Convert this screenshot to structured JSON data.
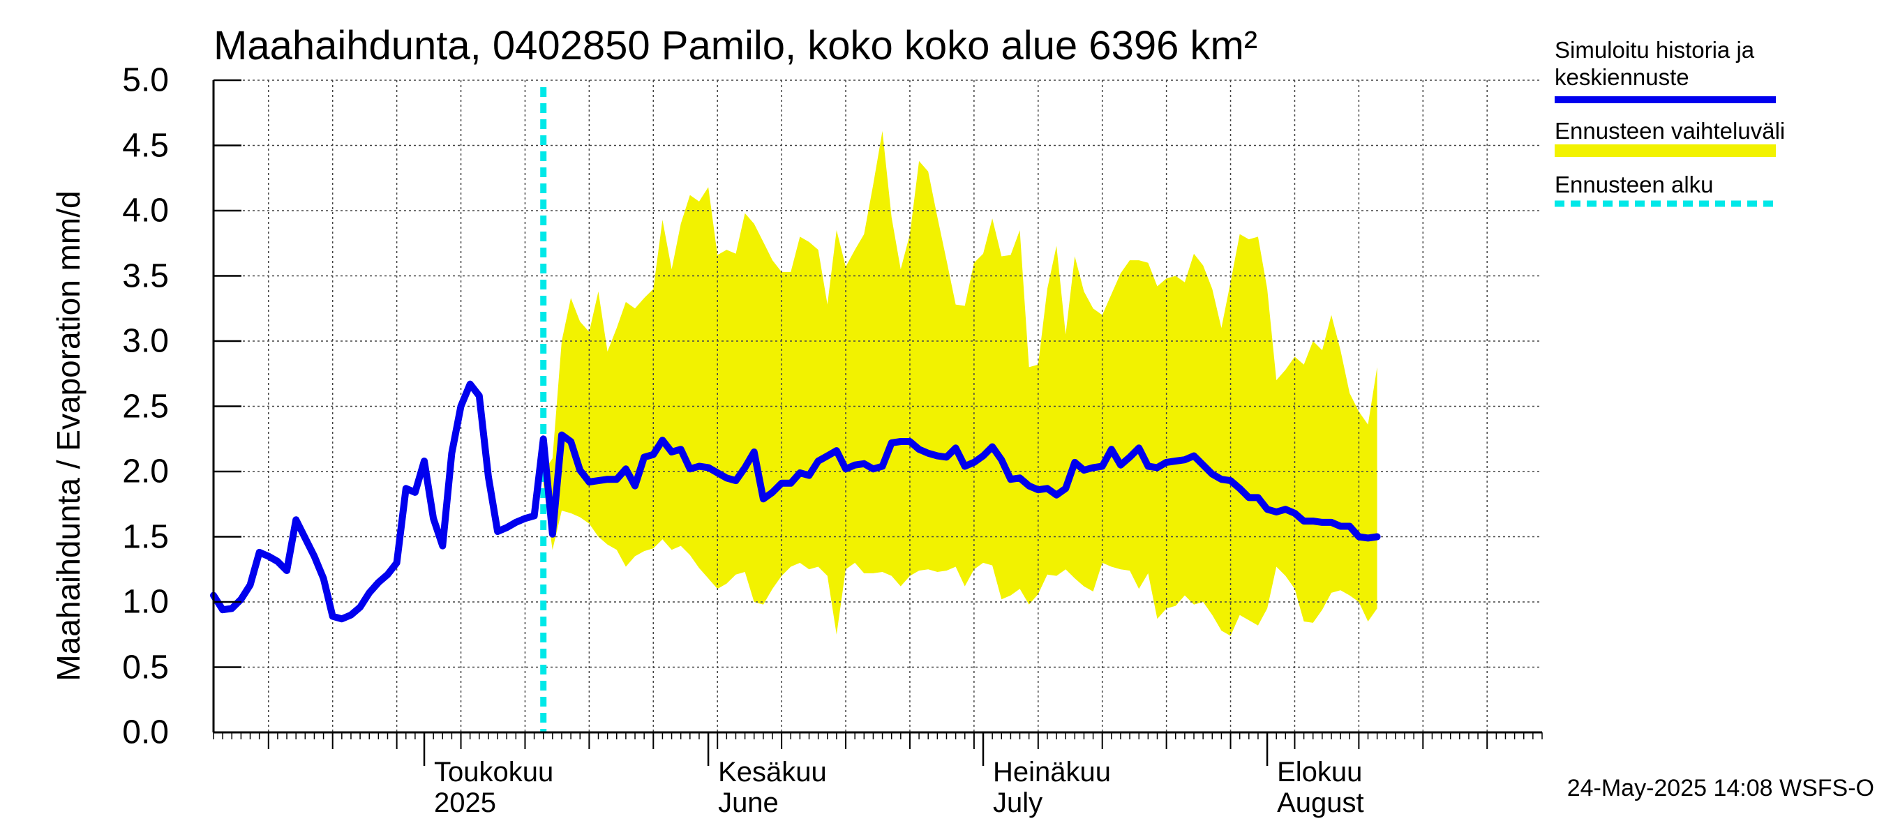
{
  "chart_data": {
    "type": "line",
    "title": "Maahaihdunta, 0402850 Pamilo, koko koko alue 6396 km²",
    "ylabel": "Maahaihdunta / Evaporation   mm/d",
    "ylim": [
      0,
      5
    ],
    "yticks": [
      "0.0",
      "0.5",
      "1.0",
      "1.5",
      "2.0",
      "2.5",
      "3.0",
      "3.5",
      "4.0",
      "4.5",
      "5.0"
    ],
    "xlim": [
      "2025-04-08",
      "2025-08-31"
    ],
    "xtick_labels": [
      {
        "date": "2025-05-01",
        "lines": [
          "Toukokuu",
          "2025"
        ]
      },
      {
        "date": "2025-06-01",
        "lines": [
          "Kesäkuu",
          "June"
        ]
      },
      {
        "date": "2025-07-01",
        "lines": [
          "Heinäkuu",
          "July"
        ]
      },
      {
        "date": "2025-08-01",
        "lines": [
          "Elokuu",
          "August"
        ]
      }
    ],
    "grid": true,
    "legend_position": "right",
    "series": [
      {
        "name": "Simuloitu historia ja keskiennuste",
        "color": "#0000ee",
        "points": [
          [
            "2025-04-08",
            1.05
          ],
          [
            "2025-04-09",
            0.94
          ],
          [
            "2025-04-10",
            0.95
          ],
          [
            "2025-04-11",
            1.02
          ],
          [
            "2025-04-12",
            1.13
          ],
          [
            "2025-04-13",
            1.38
          ],
          [
            "2025-04-14",
            1.35
          ],
          [
            "2025-04-15",
            1.31
          ],
          [
            "2025-04-16",
            1.24
          ],
          [
            "2025-04-17",
            1.63
          ],
          [
            "2025-04-18",
            1.49
          ],
          [
            "2025-04-19",
            1.35
          ],
          [
            "2025-04-20",
            1.18
          ],
          [
            "2025-04-21",
            0.89
          ],
          [
            "2025-04-22",
            0.87
          ],
          [
            "2025-04-23",
            0.9
          ],
          [
            "2025-04-24",
            0.96
          ],
          [
            "2025-04-25",
            1.07
          ],
          [
            "2025-04-26",
            1.15
          ],
          [
            "2025-04-27",
            1.21
          ],
          [
            "2025-04-28",
            1.3
          ],
          [
            "2025-04-29",
            1.87
          ],
          [
            "2025-04-30",
            1.84
          ],
          [
            "2025-05-01",
            2.08
          ],
          [
            "2025-05-02",
            1.64
          ],
          [
            "2025-05-03",
            1.43
          ],
          [
            "2025-05-04",
            2.14
          ],
          [
            "2025-05-05",
            2.5
          ],
          [
            "2025-05-06",
            2.67
          ],
          [
            "2025-05-07",
            2.58
          ],
          [
            "2025-05-08",
            1.96
          ],
          [
            "2025-05-09",
            1.54
          ],
          [
            "2025-05-10",
            1.57
          ],
          [
            "2025-05-11",
            1.61
          ],
          [
            "2025-05-12",
            1.64
          ],
          [
            "2025-05-13",
            1.66
          ],
          [
            "2025-05-14",
            2.25
          ],
          [
            "2025-05-15",
            1.52
          ],
          [
            "2025-05-16",
            2.28
          ],
          [
            "2025-05-17",
            2.23
          ],
          [
            "2025-05-18",
            2.01
          ],
          [
            "2025-05-19",
            1.92
          ],
          [
            "2025-05-20",
            1.93
          ],
          [
            "2025-05-21",
            1.94
          ],
          [
            "2025-05-22",
            1.94
          ],
          [
            "2025-05-23",
            2.02
          ],
          [
            "2025-05-24",
            1.89
          ],
          [
            "2025-05-25",
            2.11
          ],
          [
            "2025-05-26",
            2.13
          ],
          [
            "2025-05-27",
            2.24
          ],
          [
            "2025-05-28",
            2.15
          ],
          [
            "2025-05-29",
            2.17
          ],
          [
            "2025-05-30",
            2.02
          ],
          [
            "2025-05-31",
            2.04
          ],
          [
            "2025-06-01",
            2.03
          ],
          [
            "2025-06-02",
            1.99
          ],
          [
            "2025-06-03",
            1.95
          ],
          [
            "2025-06-04",
            1.93
          ],
          [
            "2025-06-05",
            2.03
          ],
          [
            "2025-06-06",
            2.15
          ],
          [
            "2025-06-07",
            1.79
          ],
          [
            "2025-06-08",
            1.84
          ],
          [
            "2025-06-09",
            1.91
          ],
          [
            "2025-06-10",
            1.91
          ],
          [
            "2025-06-11",
            1.99
          ],
          [
            "2025-06-12",
            1.97
          ],
          [
            "2025-06-13",
            2.08
          ],
          [
            "2025-06-14",
            2.12
          ],
          [
            "2025-06-15",
            2.16
          ],
          [
            "2025-06-16",
            2.02
          ],
          [
            "2025-06-17",
            2.05
          ],
          [
            "2025-06-18",
            2.06
          ],
          [
            "2025-06-19",
            2.02
          ],
          [
            "2025-06-20",
            2.04
          ],
          [
            "2025-06-21",
            2.22
          ],
          [
            "2025-06-22",
            2.23
          ],
          [
            "2025-06-23",
            2.23
          ],
          [
            "2025-06-24",
            2.17
          ],
          [
            "2025-06-25",
            2.14
          ],
          [
            "2025-06-26",
            2.12
          ],
          [
            "2025-06-27",
            2.11
          ],
          [
            "2025-06-28",
            2.18
          ],
          [
            "2025-06-29",
            2.04
          ],
          [
            "2025-06-30",
            2.07
          ],
          [
            "2025-07-01",
            2.12
          ],
          [
            "2025-07-02",
            2.19
          ],
          [
            "2025-07-03",
            2.09
          ],
          [
            "2025-07-04",
            1.94
          ],
          [
            "2025-07-05",
            1.95
          ],
          [
            "2025-07-06",
            1.89
          ],
          [
            "2025-07-07",
            1.86
          ],
          [
            "2025-07-08",
            1.87
          ],
          [
            "2025-07-09",
            1.82
          ],
          [
            "2025-07-10",
            1.87
          ],
          [
            "2025-07-11",
            2.07
          ],
          [
            "2025-07-12",
            2.01
          ],
          [
            "2025-07-13",
            2.03
          ],
          [
            "2025-07-14",
            2.04
          ],
          [
            "2025-07-15",
            2.17
          ],
          [
            "2025-07-16",
            2.05
          ],
          [
            "2025-07-17",
            2.11
          ],
          [
            "2025-07-18",
            2.18
          ],
          [
            "2025-07-19",
            2.04
          ],
          [
            "2025-07-20",
            2.03
          ],
          [
            "2025-07-21",
            2.07
          ],
          [
            "2025-07-22",
            2.08
          ],
          [
            "2025-07-23",
            2.09
          ],
          [
            "2025-07-24",
            2.12
          ],
          [
            "2025-07-25",
            2.05
          ],
          [
            "2025-07-26",
            1.98
          ],
          [
            "2025-07-27",
            1.94
          ],
          [
            "2025-07-28",
            1.93
          ],
          [
            "2025-07-29",
            1.87
          ],
          [
            "2025-07-30",
            1.8
          ],
          [
            "2025-07-31",
            1.8
          ],
          [
            "2025-08-01",
            1.71
          ],
          [
            "2025-08-02",
            1.69
          ],
          [
            "2025-08-03",
            1.71
          ],
          [
            "2025-08-04",
            1.68
          ],
          [
            "2025-08-05",
            1.62
          ],
          [
            "2025-08-06",
            1.62
          ],
          [
            "2025-08-07",
            1.61
          ],
          [
            "2025-08-08",
            1.61
          ],
          [
            "2025-08-09",
            1.58
          ],
          [
            "2025-08-10",
            1.58
          ],
          [
            "2025-08-11",
            1.5
          ],
          [
            "2025-08-12",
            1.49
          ],
          [
            "2025-08-13",
            1.5
          ]
        ]
      },
      {
        "name": "Ennusteen vaihteluväli",
        "color": "#f2f200",
        "points_lower_upper": [
          [
            "2025-05-14",
            1.9,
            2.0
          ],
          [
            "2025-05-15",
            1.4,
            2.1
          ],
          [
            "2025-05-16",
            1.7,
            3.0
          ],
          [
            "2025-05-17",
            1.68,
            3.33
          ],
          [
            "2025-05-18",
            1.65,
            3.15
          ],
          [
            "2025-05-19",
            1.6,
            3.07
          ],
          [
            "2025-05-20",
            1.5,
            3.38
          ],
          [
            "2025-05-21",
            1.44,
            2.92
          ],
          [
            "2025-05-22",
            1.4,
            3.1
          ],
          [
            "2025-05-23",
            1.27,
            3.3
          ],
          [
            "2025-05-24",
            1.35,
            3.25
          ],
          [
            "2025-05-25",
            1.39,
            3.33
          ],
          [
            "2025-05-26",
            1.41,
            3.4
          ],
          [
            "2025-05-27",
            1.48,
            3.93
          ],
          [
            "2025-05-28",
            1.4,
            3.55
          ],
          [
            "2025-05-29",
            1.43,
            3.9
          ],
          [
            "2025-05-30",
            1.36,
            4.12
          ],
          [
            "2025-05-31",
            1.26,
            4.07
          ],
          [
            "2025-06-01",
            1.18,
            4.18
          ],
          [
            "2025-06-02",
            1.1,
            3.66
          ],
          [
            "2025-06-03",
            1.14,
            3.7
          ],
          [
            "2025-06-04",
            1.21,
            3.67
          ],
          [
            "2025-06-05",
            1.23,
            3.98
          ],
          [
            "2025-06-06",
            1.0,
            3.9
          ],
          [
            "2025-06-07",
            0.98,
            3.76
          ],
          [
            "2025-06-08",
            1.1,
            3.62
          ],
          [
            "2025-06-09",
            1.2,
            3.53
          ],
          [
            "2025-06-10",
            1.27,
            3.53
          ],
          [
            "2025-06-11",
            1.3,
            3.8
          ],
          [
            "2025-06-12",
            1.25,
            3.76
          ],
          [
            "2025-06-13",
            1.27,
            3.7
          ],
          [
            "2025-06-14",
            1.2,
            3.28
          ],
          [
            "2025-06-15",
            0.75,
            3.85
          ],
          [
            "2025-06-16",
            1.25,
            3.57
          ],
          [
            "2025-06-17",
            1.3,
            3.7
          ],
          [
            "2025-06-18",
            1.22,
            3.82
          ],
          [
            "2025-06-19",
            1.22,
            4.2
          ],
          [
            "2025-06-20",
            1.23,
            4.61
          ],
          [
            "2025-06-21",
            1.2,
            3.95
          ],
          [
            "2025-06-22",
            1.12,
            3.55
          ],
          [
            "2025-06-23",
            1.2,
            3.82
          ],
          [
            "2025-06-24",
            1.24,
            4.38
          ],
          [
            "2025-06-25",
            1.25,
            4.3
          ],
          [
            "2025-06-26",
            1.23,
            3.95
          ],
          [
            "2025-06-27",
            1.24,
            3.62
          ],
          [
            "2025-06-28",
            1.27,
            3.28
          ],
          [
            "2025-06-29",
            1.12,
            3.27
          ],
          [
            "2025-06-30",
            1.25,
            3.6
          ],
          [
            "2025-07-01",
            1.3,
            3.67
          ],
          [
            "2025-07-02",
            1.28,
            3.94
          ],
          [
            "2025-07-03",
            1.02,
            3.65
          ],
          [
            "2025-07-04",
            1.05,
            3.66
          ],
          [
            "2025-07-05",
            1.1,
            3.85
          ],
          [
            "2025-07-06",
            0.98,
            2.8
          ],
          [
            "2025-07-07",
            1.06,
            2.82
          ],
          [
            "2025-07-08",
            1.21,
            3.4
          ],
          [
            "2025-07-09",
            1.2,
            3.73
          ],
          [
            "2025-07-10",
            1.25,
            3.05
          ],
          [
            "2025-07-11",
            1.18,
            3.65
          ],
          [
            "2025-07-12",
            1.12,
            3.38
          ],
          [
            "2025-07-13",
            1.08,
            3.25
          ],
          [
            "2025-07-14",
            1.3,
            3.2
          ],
          [
            "2025-07-15",
            1.27,
            3.36
          ],
          [
            "2025-07-16",
            1.25,
            3.52
          ],
          [
            "2025-07-17",
            1.24,
            3.62
          ],
          [
            "2025-07-18",
            1.1,
            3.62
          ],
          [
            "2025-07-19",
            1.22,
            3.6
          ],
          [
            "2025-07-20",
            0.87,
            3.42
          ],
          [
            "2025-07-21",
            0.95,
            3.48
          ],
          [
            "2025-07-22",
            0.97,
            3.5
          ],
          [
            "2025-07-23",
            1.05,
            3.45
          ],
          [
            "2025-07-24",
            0.98,
            3.67
          ],
          [
            "2025-07-25",
            1.0,
            3.58
          ],
          [
            "2025-07-26",
            0.9,
            3.4
          ],
          [
            "2025-07-27",
            0.78,
            3.1
          ],
          [
            "2025-07-28",
            0.74,
            3.45
          ],
          [
            "2025-07-29",
            0.9,
            3.82
          ],
          [
            "2025-07-30",
            0.86,
            3.78
          ],
          [
            "2025-07-31",
            0.82,
            3.8
          ],
          [
            "2025-08-01",
            0.95,
            3.4
          ],
          [
            "2025-08-02",
            1.27,
            2.7
          ],
          [
            "2025-08-03",
            1.2,
            2.78
          ],
          [
            "2025-08-04",
            1.1,
            2.88
          ],
          [
            "2025-08-05",
            0.85,
            2.82
          ],
          [
            "2025-08-06",
            0.84,
            3.0
          ],
          [
            "2025-08-07",
            0.94,
            2.93
          ],
          [
            "2025-08-08",
            1.07,
            3.2
          ],
          [
            "2025-08-09",
            1.09,
            2.93
          ],
          [
            "2025-08-10",
            1.05,
            2.6
          ],
          [
            "2025-08-11",
            1.0,
            2.46
          ],
          [
            "2025-08-12",
            0.85,
            2.36
          ],
          [
            "2025-08-13",
            0.95,
            2.8
          ]
        ]
      }
    ],
    "forecast_start": "2025-05-14",
    "legend": [
      {
        "label_lines": [
          "Simuloitu historia ja",
          "keskiennuste"
        ],
        "color": "#0000ee",
        "style": "solid"
      },
      {
        "label_lines": [
          "Ennusteen vaihteluväli"
        ],
        "color": "#f2f200",
        "style": "solid"
      },
      {
        "label_lines": [
          "Ennusteen alku"
        ],
        "color": "#00e8e8",
        "style": "dashed"
      }
    ],
    "timestamp": "24-May-2025 14:08 WSFS-O"
  }
}
